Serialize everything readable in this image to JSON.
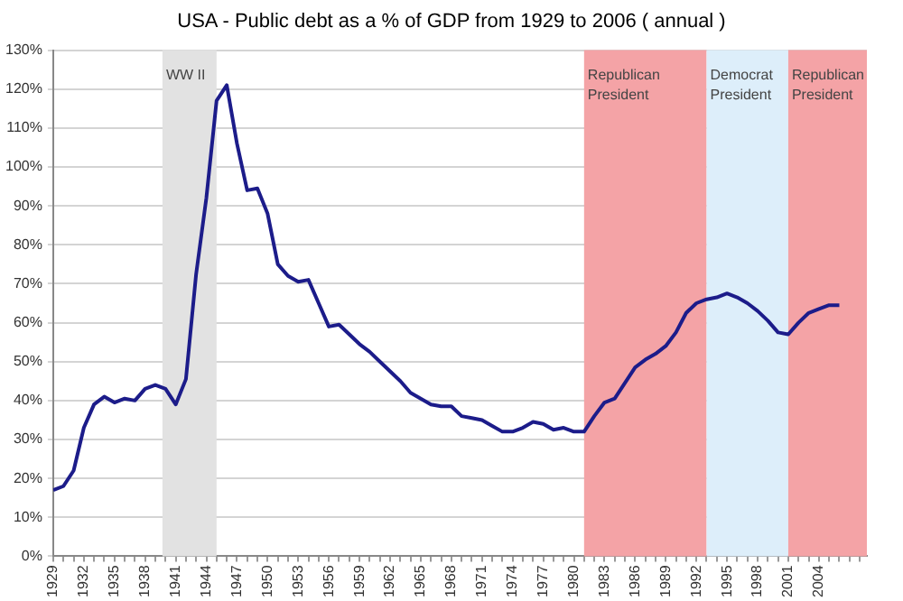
{
  "chart_data": {
    "type": "line",
    "title": "USA - Public debt as a % of GDP from 1929 to 2006 ( annual )",
    "x": [
      1929,
      1930,
      1931,
      1932,
      1933,
      1934,
      1935,
      1936,
      1937,
      1938,
      1939,
      1940,
      1941,
      1942,
      1943,
      1944,
      1945,
      1946,
      1947,
      1948,
      1949,
      1950,
      1951,
      1952,
      1953,
      1954,
      1955,
      1956,
      1957,
      1958,
      1959,
      1960,
      1961,
      1962,
      1963,
      1964,
      1965,
      1966,
      1967,
      1968,
      1969,
      1970,
      1971,
      1972,
      1973,
      1974,
      1975,
      1976,
      1977,
      1978,
      1979,
      1980,
      1981,
      1982,
      1983,
      1984,
      1985,
      1986,
      1987,
      1988,
      1989,
      1990,
      1991,
      1992,
      1993,
      1994,
      1995,
      1996,
      1997,
      1998,
      1999,
      2000,
      2001,
      2002,
      2003,
      2004,
      2005,
      2006
    ],
    "series": [
      {
        "color": "#1c1c8a",
        "values": [
          17,
          18,
          22,
          33,
          39,
          41,
          39.5,
          40.5,
          40,
          43,
          44,
          43,
          39,
          45.5,
          72.5,
          92,
          117,
          121,
          106,
          94,
          94.5,
          88,
          75,
          72,
          70.5,
          71,
          65,
          59,
          59.5,
          57,
          54.5,
          52.5,
          50,
          47.5,
          45,
          42,
          40.5,
          39,
          38.5,
          38.5,
          36,
          35.5,
          35,
          33.5,
          32,
          32,
          33,
          34.5,
          34,
          32.5,
          33,
          32,
          32,
          36,
          39.5,
          40.5,
          44.5,
          48.5,
          50.5,
          52,
          54,
          57.5,
          62.5,
          65,
          66,
          66.5,
          67.5,
          66.5,
          65,
          63,
          60.5,
          57.5,
          57,
          60,
          62.5,
          63.5,
          64.5,
          64.5
        ]
      }
    ],
    "xlim": [
      1929,
      2008.7
    ],
    "xticks": [
      1929,
      {
        "value": 1930,
        "label": null
      },
      {
        "value": 1931,
        "label": null
      },
      1932,
      {
        "value": 1933,
        "label": null
      },
      {
        "value": 1934,
        "label": null
      },
      1935,
      {
        "value": 1936,
        "label": null
      },
      {
        "value": 1937,
        "label": null
      },
      1938,
      {
        "value": 1939,
        "label": null
      },
      {
        "value": 1940,
        "label": null
      },
      1941,
      {
        "value": 1942,
        "label": null
      },
      {
        "value": 1943,
        "label": null
      },
      1944,
      {
        "value": 1945,
        "label": null
      },
      {
        "value": 1946,
        "label": null
      },
      1947,
      {
        "value": 1948,
        "label": null
      },
      {
        "value": 1949,
        "label": null
      },
      1950,
      {
        "value": 1951,
        "label": null
      },
      {
        "value": 1952,
        "label": null
      },
      1953,
      {
        "value": 1954,
        "label": null
      },
      {
        "value": 1955,
        "label": null
      },
      1956,
      {
        "value": 1957,
        "label": null
      },
      {
        "value": 1958,
        "label": null
      },
      1959,
      {
        "value": 1960,
        "label": null
      },
      {
        "value": 1961,
        "label": null
      },
      1962,
      {
        "value": 1963,
        "label": null
      },
      {
        "value": 1964,
        "label": null
      },
      1965,
      {
        "value": 1966,
        "label": null
      },
      {
        "value": 1967,
        "label": null
      },
      1968,
      {
        "value": 1969,
        "label": null
      },
      {
        "value": 1970,
        "label": null
      },
      1971,
      {
        "value": 1972,
        "label": null
      },
      {
        "value": 1973,
        "label": null
      },
      1974,
      {
        "value": 1975,
        "label": null
      },
      {
        "value": 1976,
        "label": null
      },
      1977,
      {
        "value": 1978,
        "label": null
      },
      {
        "value": 1979,
        "label": null
      },
      1980,
      {
        "value": 1981,
        "label": null
      },
      {
        "value": 1982,
        "label": null
      },
      1983,
      {
        "value": 1984,
        "label": null
      },
      {
        "value": 1985,
        "label": null
      },
      1986,
      {
        "value": 1987,
        "label": null
      },
      {
        "value": 1988,
        "label": null
      },
      1989,
      {
        "value": 1990,
        "label": null
      },
      {
        "value": 1991,
        "label": null
      },
      1992,
      {
        "value": 1993,
        "label": null
      },
      {
        "value": 1994,
        "label": null
      },
      1995,
      {
        "value": 1996,
        "label": null
      },
      {
        "value": 1997,
        "label": null
      },
      1998,
      {
        "value": 1999,
        "label": null
      },
      {
        "value": 2000,
        "label": null
      },
      2001,
      {
        "value": 2002,
        "label": null
      },
      {
        "value": 2003,
        "label": null
      },
      2004,
      {
        "value": 2005,
        "label": null
      },
      {
        "value": 2006,
        "label": null
      },
      {
        "value": 2007,
        "label": null
      },
      {
        "value": 2008,
        "label": null
      }
    ],
    "ylim": [
      0,
      130
    ],
    "yticks": [
      {
        "value": 0,
        "label": "0%"
      },
      {
        "value": 10,
        "label": "10%"
      },
      {
        "value": 20,
        "label": "20%"
      },
      {
        "value": 30,
        "label": "30%"
      },
      {
        "value": 40,
        "label": "40%"
      },
      {
        "value": 50,
        "label": "50%"
      },
      {
        "value": 60,
        "label": "60%"
      },
      {
        "value": 70,
        "label": "70%"
      },
      {
        "value": 80,
        "label": "80%"
      },
      {
        "value": 90,
        "label": "90%"
      },
      {
        "value": 100,
        "label": "100%"
      },
      {
        "value": 110,
        "label": "110%"
      },
      {
        "value": 120,
        "label": "120%"
      },
      {
        "value": 130,
        "label": "130%"
      }
    ],
    "bands": [
      {
        "axis": "x",
        "from": 1939.7,
        "to": 1945,
        "label": "WW II",
        "color": "#e2e2e2"
      },
      {
        "axis": "x",
        "from": 1981,
        "to": 1993,
        "label": "Republican President",
        "color": "#f4a3a6"
      },
      {
        "axis": "x",
        "from": 1993,
        "to": 2001,
        "label": "Democrat President",
        "color": "#ddeefa"
      },
      {
        "axis": "x",
        "from": 2001,
        "to": 2008.7,
        "label": "Republican President",
        "color": "#f4a3a6"
      }
    ],
    "grid": "y",
    "legend": false,
    "marker": "none",
    "line_style": "solid"
  }
}
